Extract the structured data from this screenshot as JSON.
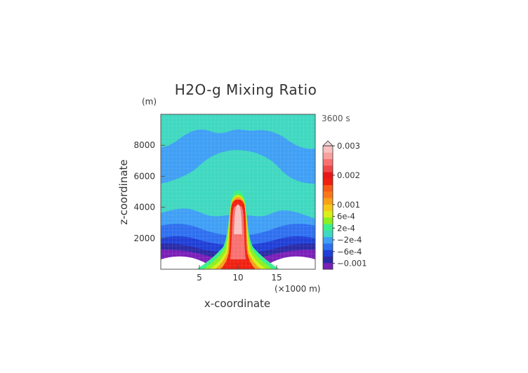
{
  "chart_data": {
    "type": "contour",
    "title": "H2O-g Mixing Ratio",
    "time_label": "3600 s",
    "xlabel": "x-coordinate",
    "ylabel": "z-coordinate",
    "x_unit": "(×1000 m)",
    "y_unit": "(m)",
    "xlim": [
      0,
      20
    ],
    "ylim": [
      0,
      10000
    ],
    "x_ticks": [
      5,
      10,
      15
    ],
    "y_ticks": [
      2000,
      4000,
      6000,
      8000
    ],
    "colorbar": {
      "labels": [
        {
          "text": "0.003",
          "value": 0.003
        },
        {
          "text": "0.002",
          "value": 0.002
        },
        {
          "text": "0.001",
          "value": 0.001
        },
        {
          "text": "6e-4",
          "value": 0.0006
        },
        {
          "text": "2e-4",
          "value": 0.0002
        },
        {
          "text": "−2e-4",
          "value": -0.0002
        },
        {
          "text": "−6e-4",
          "value": -0.0006
        },
        {
          "text": "−0.001",
          "value": -0.001
        }
      ],
      "colors_bottom_to_top": [
        "#7a1fb8",
        "#2a2aa6",
        "#1f3fd6",
        "#2e6ff0",
        "#3f9ff5",
        "#3fd8c0",
        "#39f08c",
        "#8bf020",
        "#d8f018",
        "#f8c818",
        "#f8a018",
        "#f87818",
        "#f85a18",
        "#f02010",
        "#e81818",
        "#f04848",
        "#f87070",
        "#f8a0a0",
        "#f8c0c0"
      ],
      "cap_color": "#f8d8d8"
    },
    "features": {
      "plume_axis_x": 10,
      "plume_top_z": 5000,
      "core_top_z": 4500,
      "background_upper": "positive anomaly (~2e-4) near top and middle layer",
      "background_lower": "negative anomaly (−2e-4 to −0.001) below 2000 m"
    }
  }
}
